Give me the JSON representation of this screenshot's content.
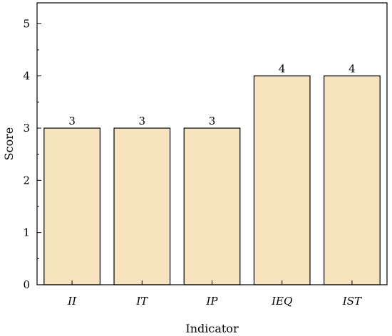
{
  "chart_data": {
    "type": "bar",
    "categories": [
      "II",
      "IT",
      "IP",
      "IEQ",
      "IST"
    ],
    "values": [
      3,
      3,
      3,
      4,
      4
    ],
    "data_labels": [
      "3",
      "3",
      "3",
      "4",
      "4"
    ],
    "xlabel": "Indicator",
    "ylabel": "Score",
    "ylim": [
      0,
      5.4
    ],
    "yticks": [
      0,
      1,
      2,
      3,
      4,
      5
    ],
    "ytick_labels": [
      "0",
      "1",
      "2",
      "3",
      "4",
      "5"
    ],
    "grid": false,
    "bar_color": "#f7e4bf",
    "bar_edge_color": "#000000"
  }
}
